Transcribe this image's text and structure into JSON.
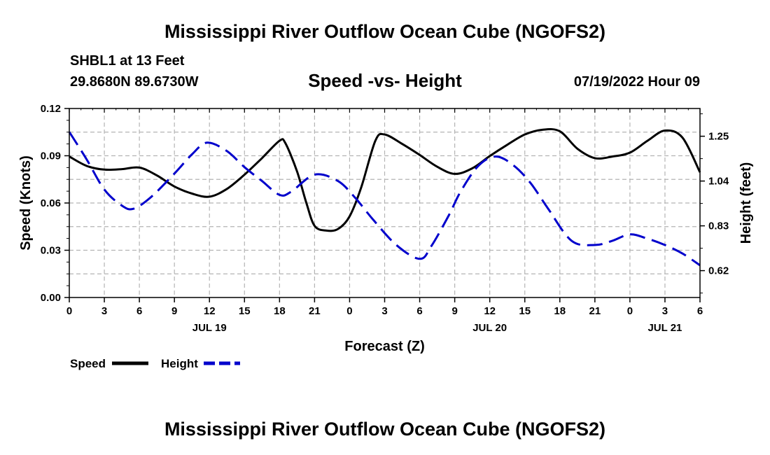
{
  "header": {
    "title": "Mississippi River Outflow Ocean Cube (NGOFS2)",
    "station": "SHBL1 at 13 Feet",
    "coords": "29.8680N  89.6730W",
    "subtitle": "Speed -vs- Height",
    "datetime": "07/19/2022 Hour 09"
  },
  "footer": {
    "title": "Mississippi River Outflow Ocean Cube (NGOFS2)"
  },
  "chart_data": {
    "type": "line",
    "title": "Speed -vs- Height",
    "xlabel": "Forecast (Z)",
    "ylabel": "Speed (Knots)",
    "y2label": "Height (feet)",
    "xlim": [
      0,
      54
    ],
    "ylim": [
      0,
      0.12
    ],
    "y2lim": [
      0.494,
      1.38
    ],
    "grid": true,
    "x_tick_values": [
      0,
      3,
      6,
      9,
      12,
      15,
      18,
      21,
      24,
      27,
      30,
      33,
      36,
      39,
      42,
      45,
      48,
      51,
      54
    ],
    "x_tick_labels": [
      "0",
      "3",
      "6",
      "9",
      "12",
      "15",
      "18",
      "21",
      "0",
      "3",
      "6",
      "9",
      "12",
      "15",
      "18",
      "21",
      "0",
      "3",
      "6"
    ],
    "day_labels": [
      {
        "x": 12,
        "label": "JUL 19"
      },
      {
        "x": 36,
        "label": "JUL 20"
      },
      {
        "x": 51,
        "label": "JUL 21"
      }
    ],
    "y_ticks": [
      0.0,
      0.03,
      0.06,
      0.09,
      0.12
    ],
    "y_tick_labels": [
      "0.00",
      "0.03",
      "0.06",
      "0.09",
      "0.12"
    ],
    "y2_ticks": [
      0.62,
      0.83,
      1.04,
      1.25
    ],
    "y2_tick_labels": [
      "0.62",
      "0.83",
      "1.04",
      "1.25"
    ],
    "series": [
      {
        "name": "Speed",
        "axis": "left",
        "color": "#000000",
        "style": "solid",
        "x": [
          0,
          1.5,
          3,
          4.5,
          6,
          7.5,
          9,
          10.5,
          12,
          13.5,
          15,
          16.5,
          18,
          18.5,
          19.5,
          20.3,
          21,
          22,
          23,
          24,
          25,
          26.2,
          27,
          28.5,
          30,
          31.5,
          33,
          34.5,
          36,
          37.5,
          39,
          40.5,
          42,
          43.5,
          45,
          46.5,
          48,
          49.5,
          51,
          52.5,
          54
        ],
        "values": [
          0.0895,
          0.0835,
          0.0812,
          0.0815,
          0.0825,
          0.0775,
          0.0705,
          0.066,
          0.064,
          0.069,
          0.078,
          0.0885,
          0.0995,
          0.098,
          0.08,
          0.06,
          0.0455,
          0.0425,
          0.0435,
          0.0515,
          0.07,
          0.0995,
          0.1035,
          0.0975,
          0.0905,
          0.083,
          0.0785,
          0.082,
          0.0898,
          0.097,
          0.1035,
          0.1065,
          0.1055,
          0.0945,
          0.0885,
          0.0895,
          0.092,
          0.0995,
          0.106,
          0.1015,
          0.0795
        ]
      },
      {
        "name": "Height",
        "axis": "right",
        "color": "#0000cc",
        "style": "dashed",
        "x": [
          0,
          1.5,
          3,
          4.5,
          5.5,
          7,
          9,
          10.5,
          11.8,
          13.5,
          15,
          16.5,
          18,
          19,
          21,
          23,
          24.5,
          26,
          28,
          30,
          31,
          32.5,
          33.5,
          35,
          36.5,
          38,
          39.5,
          41,
          43,
          45,
          46.5,
          48,
          49.5,
          51,
          52.5,
          54
        ],
        "values": [
          1.27,
          1.14,
          1.0,
          0.925,
          0.91,
          0.965,
          1.075,
          1.165,
          1.22,
          1.18,
          1.105,
          1.04,
          0.975,
          0.99,
          1.07,
          1.04,
          0.96,
          0.86,
          0.74,
          0.675,
          0.735,
          0.88,
          0.99,
          1.11,
          1.155,
          1.115,
          1.03,
          0.91,
          0.76,
          0.74,
          0.76,
          0.79,
          0.77,
          0.74,
          0.7,
          0.645
        ]
      }
    ],
    "legend": [
      {
        "label": "Speed",
        "color": "#000000",
        "style": "solid"
      },
      {
        "label": "Height",
        "color": "#0000cc",
        "style": "dashed"
      }
    ]
  }
}
